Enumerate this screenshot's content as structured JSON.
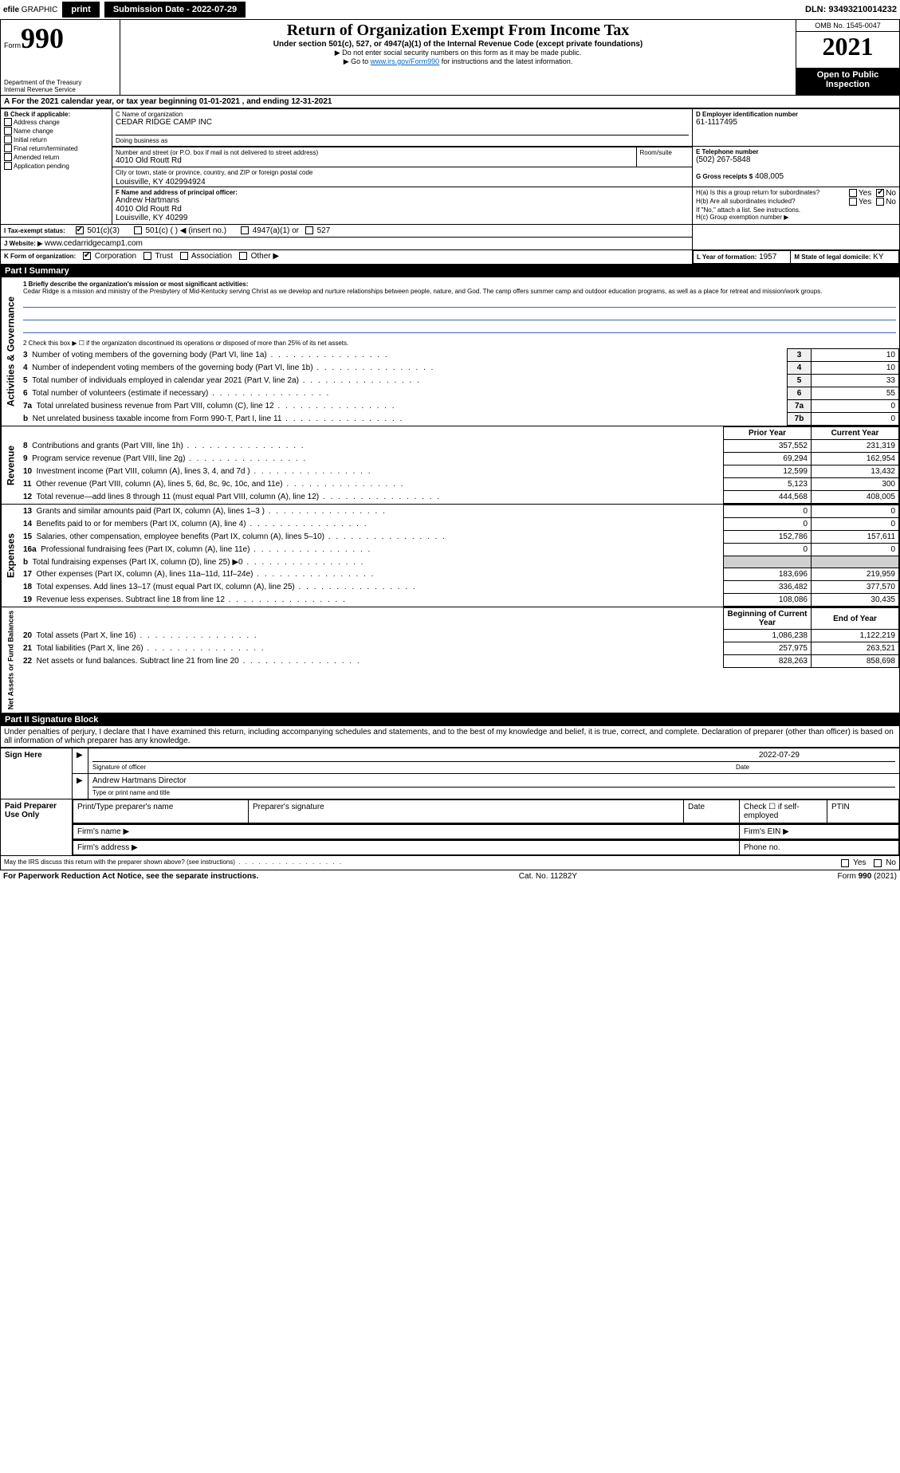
{
  "topbar": {
    "efile_prefix": "efile",
    "efile_label": "GRAPHIC",
    "efile_print": "print",
    "submission_label": "Submission Date - 2022-07-29",
    "dln_label": "DLN: 93493210014232"
  },
  "header": {
    "form_prefix": "Form",
    "form_number": "990",
    "dept": "Department of the Treasury",
    "irs": "Internal Revenue Service",
    "title": "Return of Organization Exempt From Income Tax",
    "subtitle": "Under section 501(c), 527, or 4947(a)(1) of the Internal Revenue Code (except private foundations)",
    "instr1": "▶ Do not enter social security numbers on this form as it may be made public.",
    "instr2_pre": "▶ Go to ",
    "instr2_link": "www.irs.gov/Form990",
    "instr2_post": " for instructions and the latest information.",
    "omb": "OMB No. 1545-0047",
    "year": "2021",
    "open_public": "Open to Public Inspection"
  },
  "period": {
    "line": "A For the 2021 calendar year, or tax year beginning 01-01-2021     , and ending 12-31-2021"
  },
  "boxB": {
    "label": "B Check if applicable:",
    "items": [
      "Address change",
      "Name change",
      "Initial return",
      "Final return/terminated",
      "Amended return",
      "Application pending"
    ]
  },
  "boxC": {
    "name_label": "C Name of organization",
    "name": "CEDAR RIDGE CAMP INC",
    "dba_label": "Doing business as",
    "dba": "",
    "street_label": "Number and street (or P.O. box if mail is not delivered to street address)",
    "room_label": "Room/suite",
    "street": "4010 Old Routt Rd",
    "city_label": "City or town, state or province, country, and ZIP or foreign postal code",
    "city": "Louisville, KY  402994924"
  },
  "boxD": {
    "label": "D Employer identification number",
    "value": "61-1117495"
  },
  "boxE": {
    "label": "E Telephone number",
    "value": "(502) 267-5848"
  },
  "boxG": {
    "label": "G Gross receipts $",
    "value": "408,005"
  },
  "boxF": {
    "label": "F  Name and address of principal officer:",
    "name": "Andrew Hartmans",
    "street": "4010 Old Routt Rd",
    "city": "Louisville, KY  40299"
  },
  "boxH": {
    "a_label": "H(a)  Is this a group return for subordinates?",
    "b_label": "H(b)  Are all subordinates included?",
    "b_note": "If \"No,\" attach a list. See instructions.",
    "c_label": "H(c)  Group exemption number ▶",
    "yes": "Yes",
    "no": "No"
  },
  "boxI": {
    "label": "I    Tax-exempt status:",
    "opts": [
      "501(c)(3)",
      "501(c) (   ) ◀ (insert no.)",
      "4947(a)(1) or",
      "527"
    ]
  },
  "boxJ": {
    "label": "J   Website: ▶",
    "value": "www.cedarridgecamp1.com"
  },
  "boxK": {
    "label": "K Form of organization:",
    "opts": [
      "Corporation",
      "Trust",
      "Association",
      "Other ▶"
    ]
  },
  "boxL": {
    "label": "L Year of formation:",
    "value": "1957"
  },
  "boxM": {
    "label": "M State of legal domicile:",
    "value": "KY"
  },
  "part1": {
    "bar": "Part I      Summary",
    "q1_label": "1  Briefly describe the organization's mission or most significant activities:",
    "q1_text": "Cedar Ridge is a mission and ministry of the Presbytery of Mid-Kentucky serving Christ as we develop and nurture relationships between people, nature, and God. The camp offers summer camp and outdoor education programs, as well as a place for retreat and mission/work groups.",
    "q2": "2   Check this box ▶ ☐  if the organization discontinued its operations or disposed of more than 25% of its net assets.",
    "rows_gov": [
      {
        "n": "3",
        "t": "Number of voting members of the governing body (Part VI, line 1a)",
        "box": "3",
        "v": "10"
      },
      {
        "n": "4",
        "t": "Number of independent voting members of the governing body (Part VI, line 1b)",
        "box": "4",
        "v": "10"
      },
      {
        "n": "5",
        "t": "Total number of individuals employed in calendar year 2021 (Part V, line 2a)",
        "box": "5",
        "v": "33"
      },
      {
        "n": "6",
        "t": "Total number of volunteers (estimate if necessary)",
        "box": "6",
        "v": "55"
      },
      {
        "n": "7a",
        "t": "Total unrelated business revenue from Part VIII, column (C), line 12",
        "box": "7a",
        "v": "0"
      },
      {
        "n": "b",
        "t": "Net unrelated business taxable income from Form 990-T, Part I, line 11",
        "box": "7b",
        "v": "0"
      }
    ],
    "col_prior": "Prior Year",
    "col_current": "Current Year",
    "rows_rev": [
      {
        "n": "8",
        "t": "Contributions and grants (Part VIII, line 1h)",
        "p": "357,552",
        "c": "231,319"
      },
      {
        "n": "9",
        "t": "Program service revenue (Part VIII, line 2g)",
        "p": "69,294",
        "c": "162,954"
      },
      {
        "n": "10",
        "t": "Investment income (Part VIII, column (A), lines 3, 4, and 7d )",
        "p": "12,599",
        "c": "13,432"
      },
      {
        "n": "11",
        "t": "Other revenue (Part VIII, column (A), lines 5, 6d, 8c, 9c, 10c, and 11e)",
        "p": "5,123",
        "c": "300"
      },
      {
        "n": "12",
        "t": "Total revenue—add lines 8 through 11 (must equal Part VIII, column (A), line 12)",
        "p": "444,568",
        "c": "408,005"
      }
    ],
    "rows_exp": [
      {
        "n": "13",
        "t": "Grants and similar amounts paid (Part IX, column (A), lines 1–3 )",
        "p": "0",
        "c": "0"
      },
      {
        "n": "14",
        "t": "Benefits paid to or for members (Part IX, column (A), line 4)",
        "p": "0",
        "c": "0"
      },
      {
        "n": "15",
        "t": "Salaries, other compensation, employee benefits (Part IX, column (A), lines 5–10)",
        "p": "152,786",
        "c": "157,611"
      },
      {
        "n": "16a",
        "t": "Professional fundraising fees (Part IX, column (A), line 11e)",
        "p": "0",
        "c": "0"
      },
      {
        "n": "b",
        "t": "Total fundraising expenses (Part IX, column (D), line 25) ▶0",
        "p": "",
        "c": "",
        "shaded": true
      },
      {
        "n": "17",
        "t": "Other expenses (Part IX, column (A), lines 11a–11d, 11f–24e)",
        "p": "183,696",
        "c": "219,959"
      },
      {
        "n": "18",
        "t": "Total expenses. Add lines 13–17 (must equal Part IX, column (A), line 25)",
        "p": "336,482",
        "c": "377,570"
      },
      {
        "n": "19",
        "t": "Revenue less expenses. Subtract line 18 from line 12",
        "p": "108,086",
        "c": "30,435"
      }
    ],
    "col_begin": "Beginning of Current Year",
    "col_end": "End of Year",
    "rows_net": [
      {
        "n": "20",
        "t": "Total assets (Part X, line 16)",
        "p": "1,086,238",
        "c": "1,122,219"
      },
      {
        "n": "21",
        "t": "Total liabilities (Part X, line 26)",
        "p": "257,975",
        "c": "263,521"
      },
      {
        "n": "22",
        "t": "Net assets or fund balances. Subtract line 21 from line 20",
        "p": "828,263",
        "c": "858,698"
      }
    ],
    "vlabel_gov": "Activities & Governance",
    "vlabel_rev": "Revenue",
    "vlabel_exp": "Expenses",
    "vlabel_net": "Net Assets or Fund Balances"
  },
  "part2": {
    "bar": "Part II      Signature Block",
    "penalty": "Under penalties of perjury, I declare that I have examined this return, including accompanying schedules and statements, and to the best of my knowledge and belief, it is true, correct, and complete. Declaration of preparer (other than officer) is based on all information of which preparer has any knowledge.",
    "sign_here": "Sign Here",
    "sig_officer": "Signature of officer",
    "sig_date": "Date",
    "sig_date_val": "2022-07-29",
    "sig_name": "Andrew Hartmans  Director",
    "sig_type": "Type or print name and title",
    "paid": "Paid Preparer Use Only",
    "prep_name": "Print/Type preparer's name",
    "prep_sig": "Preparer's signature",
    "prep_date": "Date",
    "prep_check": "Check ☐ if self-employed",
    "ptin": "PTIN",
    "firm_name": "Firm's name    ▶",
    "firm_ein": "Firm's EIN ▶",
    "firm_addr": "Firm's address ▶",
    "phone": "Phone no.",
    "discuss": "May the IRS discuss this return with the preparer shown above? (see instructions)",
    "yes": "Yes",
    "no": "No"
  },
  "footer": {
    "pra": "For Paperwork Reduction Act Notice, see the separate instructions.",
    "cat": "Cat. No. 11282Y",
    "form": "Form 990 (2021)"
  }
}
